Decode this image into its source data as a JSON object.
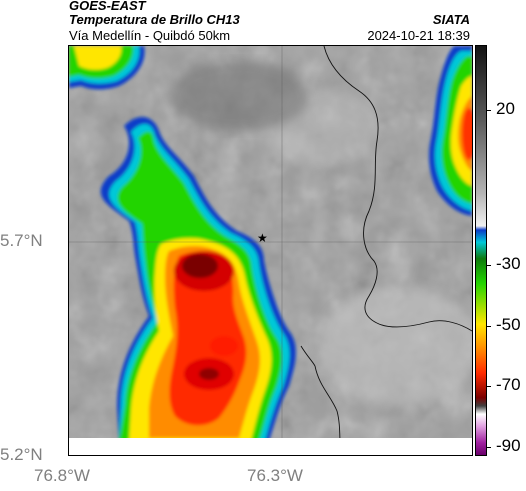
{
  "header": {
    "satellite": "GOES-EAST",
    "product": "Temperatura de Brillo CH13",
    "org": "SIATA",
    "location": "Vía Medellín - Quibdó 50km",
    "datetime": "2024-10-21 18:39"
  },
  "axes": {
    "y_ticks": [
      "5.7°N",
      "5.2°N"
    ],
    "x_ticks": [
      "76.8°W",
      "76.3°W"
    ]
  },
  "colorbar": {
    "ticks": [
      "20",
      "-30",
      "-50",
      "-70",
      "-90"
    ]
  },
  "marker": {
    "symbol": "★"
  },
  "colors": {
    "cold_core": "#7a0000",
    "red": "#ff2a00",
    "orange": "#ff8c00",
    "yellow": "#ffe600",
    "green": "#22d400",
    "cyan": "#00c8d8",
    "blue": "#0b3cc8",
    "magenta": "#a020a0"
  }
}
